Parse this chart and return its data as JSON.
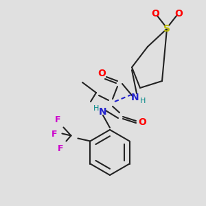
{
  "bg_color": "#e0e0e0",
  "bond_color": "#222222",
  "colors": {
    "O": "#ff0000",
    "N": "#2222cc",
    "S": "#bbbb00",
    "F": "#cc00cc",
    "H_teal": "#008888"
  },
  "figsize": [
    3.0,
    3.0
  ],
  "dpi": 100
}
